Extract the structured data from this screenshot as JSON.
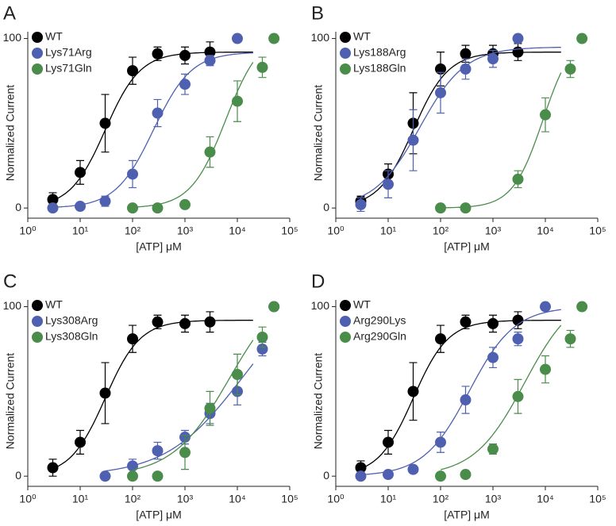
{
  "chart_data": [
    {
      "type": "scatter",
      "panel_label": "A",
      "x_label": "[ATP] μM",
      "y_label": "Normalized Current",
      "xscale": "log",
      "xlim": [
        1,
        100000
      ],
      "ylim": [
        -6,
        104
      ],
      "xticks": [
        {
          "value": 1,
          "label": "10⁰"
        },
        {
          "value": 10,
          "label": "10¹"
        },
        {
          "value": 100,
          "label": "10²"
        },
        {
          "value": 1000,
          "label": "10³"
        },
        {
          "value": 10000,
          "label": "10⁴"
        },
        {
          "value": 100000,
          "label": "10⁵"
        }
      ],
      "yticks": [
        0,
        100
      ],
      "legend": "upper left",
      "series": [
        {
          "name": "WT",
          "color": "#000000",
          "x": [
            3,
            10,
            30,
            100,
            300,
            1000,
            3000
          ],
          "values": [
            5,
            21,
            50,
            81,
            91,
            90,
            92
          ],
          "errors": [
            4,
            7,
            17,
            8,
            4,
            5,
            6
          ],
          "fit": {
            "ec50": 30,
            "hill": 1.3,
            "top": 92
          }
        },
        {
          "name": "Lys71Arg",
          "color": "#4f60b0",
          "x": [
            3,
            10,
            30,
            100,
            300,
            1000,
            3000,
            10000
          ],
          "values": [
            0,
            1,
            4,
            20,
            56,
            73,
            87,
            100
          ],
          "errors": [
            1,
            1,
            3,
            8,
            8,
            6,
            3,
            0
          ],
          "fit": {
            "ec50": 250,
            "hill": 1.2,
            "top": 92
          }
        },
        {
          "name": "Lys71Gln",
          "color": "#4a8c4a",
          "x": [
            100,
            300,
            1000,
            3000,
            10000,
            30000,
            50000
          ],
          "values": [
            0,
            0,
            2,
            33,
            63,
            83,
            100
          ],
          "errors": [
            0,
            0,
            0,
            9,
            12,
            6,
            0
          ],
          "fit": {
            "ec50": 6000,
            "hill": 1.3,
            "top": 104
          }
        }
      ]
    },
    {
      "type": "scatter",
      "panel_label": "B",
      "x_label": "[ATP] μM",
      "y_label": "Normalized Current",
      "xscale": "log",
      "xlim": [
        1,
        100000
      ],
      "ylim": [
        -6,
        104
      ],
      "xticks": [
        {
          "value": 1,
          "label": "10⁰"
        },
        {
          "value": 10,
          "label": "10¹"
        },
        {
          "value": 100,
          "label": "10²"
        },
        {
          "value": 1000,
          "label": "10³"
        },
        {
          "value": 10000,
          "label": "10⁴"
        },
        {
          "value": 100000,
          "label": "10⁵"
        }
      ],
      "yticks": [
        0,
        100
      ],
      "legend": "upper left",
      "series": [
        {
          "name": "WT",
          "color": "#000000",
          "x": [
            3,
            10,
            30,
            100,
            300,
            1000,
            3000
          ],
          "values": [
            4,
            20,
            50,
            82,
            91,
            91,
            92
          ],
          "errors": [
            3,
            6,
            18,
            10,
            5,
            5,
            5
          ],
          "fit": {
            "ec50": 30,
            "hill": 1.3,
            "top": 92
          }
        },
        {
          "name": "Lys188Arg",
          "color": "#4f60b0",
          "x": [
            3,
            10,
            30,
            100,
            300,
            1000,
            3000
          ],
          "values": [
            2,
            14,
            40,
            68,
            82,
            88,
            100
          ],
          "errors": [
            4,
            8,
            18,
            12,
            6,
            5,
            0
          ],
          "fit": {
            "ec50": 40,
            "hill": 1.0,
            "top": 95
          }
        },
        {
          "name": "Lys188Gln",
          "color": "#4a8c4a",
          "x": [
            100,
            300,
            3000,
            10000,
            30000,
            50000
          ],
          "values": [
            0,
            0,
            17,
            55,
            82,
            100
          ],
          "errors": [
            0,
            0,
            5,
            10,
            5,
            0
          ],
          "fit": {
            "ec50": 9000,
            "hill": 1.5,
            "top": 104
          }
        }
      ]
    },
    {
      "type": "scatter",
      "panel_label": "C",
      "x_label": "[ATP] μM",
      "y_label": "Normalized Current",
      "xscale": "log",
      "xlim": [
        1,
        100000
      ],
      "ylim": [
        -6,
        104
      ],
      "xticks": [
        {
          "value": 1,
          "label": "10⁰"
        },
        {
          "value": 10,
          "label": "10¹"
        },
        {
          "value": 100,
          "label": "10²"
        },
        {
          "value": 1000,
          "label": "10³"
        },
        {
          "value": 10000,
          "label": "10⁴"
        },
        {
          "value": 100000,
          "label": "10⁵"
        }
      ],
      "yticks": [
        0,
        100
      ],
      "legend": "upper left",
      "series": [
        {
          "name": "WT",
          "color": "#000000",
          "x": [
            3,
            10,
            30,
            100,
            300,
            1000,
            3000
          ],
          "values": [
            5,
            20,
            49,
            81,
            91,
            90,
            91
          ],
          "errors": [
            5,
            7,
            18,
            8,
            4,
            5,
            6
          ],
          "fit": {
            "ec50": 30,
            "hill": 1.3,
            "top": 92
          }
        },
        {
          "name": "Lys308Arg",
          "color": "#4f60b0",
          "x": [
            30,
            100,
            300,
            1000,
            3000,
            10000,
            30000,
            50000
          ],
          "values": [
            0,
            6,
            15,
            23,
            37,
            50,
            75,
            100
          ],
          "errors": [
            0,
            4,
            5,
            4,
            6,
            8,
            4,
            0
          ],
          "fit": {
            "ec50": 12000,
            "hill": 0.6,
            "top": 115
          }
        },
        {
          "name": "Lys308Gln",
          "color": "#4a8c4a",
          "x": [
            100,
            300,
            1000,
            3000,
            10000,
            30000,
            50000
          ],
          "values": [
            0,
            0,
            14,
            40,
            60,
            82,
            100
          ],
          "errors": [
            0,
            0,
            10,
            10,
            12,
            6,
            0
          ],
          "fit": {
            "ec50": 7000,
            "hill": 0.8,
            "top": 115
          }
        }
      ]
    },
    {
      "type": "scatter",
      "panel_label": "D",
      "x_label": "[ATP] μM",
      "y_label": "Normalized Current",
      "xscale": "log",
      "xlim": [
        1,
        100000
      ],
      "ylim": [
        -6,
        104
      ],
      "xticks": [
        {
          "value": 1,
          "label": "10⁰"
        },
        {
          "value": 10,
          "label": "10¹"
        },
        {
          "value": 100,
          "label": "10²"
        },
        {
          "value": 1000,
          "label": "10³"
        },
        {
          "value": 10000,
          "label": "10⁴"
        },
        {
          "value": 100000,
          "label": "10⁵"
        }
      ],
      "yticks": [
        0,
        100
      ],
      "legend": "upper left",
      "series": [
        {
          "name": "WT",
          "color": "#000000",
          "x": [
            3,
            10,
            30,
            100,
            300,
            1000,
            3000
          ],
          "values": [
            5,
            20,
            50,
            81,
            91,
            90,
            92
          ],
          "errors": [
            4,
            7,
            17,
            8,
            4,
            5,
            5
          ],
          "fit": {
            "ec50": 30,
            "hill": 1.3,
            "top": 92
          }
        },
        {
          "name": "Arg290Lys",
          "color": "#4f60b0",
          "x": [
            3,
            10,
            30,
            100,
            300,
            1000,
            3000,
            10000
          ],
          "values": [
            0,
            1,
            4,
            20,
            45,
            70,
            81,
            100
          ],
          "errors": [
            0,
            0,
            0,
            6,
            8,
            6,
            4,
            0
          ],
          "fit": {
            "ec50": 350,
            "hill": 1.0,
            "top": 100
          }
        },
        {
          "name": "Arg290Gln",
          "color": "#4a8c4a",
          "x": [
            100,
            300,
            1000,
            3000,
            10000,
            30000,
            50000
          ],
          "values": [
            0,
            1,
            16,
            47,
            63,
            81,
            100
          ],
          "errors": [
            0,
            0,
            3,
            10,
            8,
            5,
            0
          ],
          "fit": {
            "ec50": 4000,
            "hill": 0.9,
            "top": 110
          }
        }
      ]
    }
  ]
}
